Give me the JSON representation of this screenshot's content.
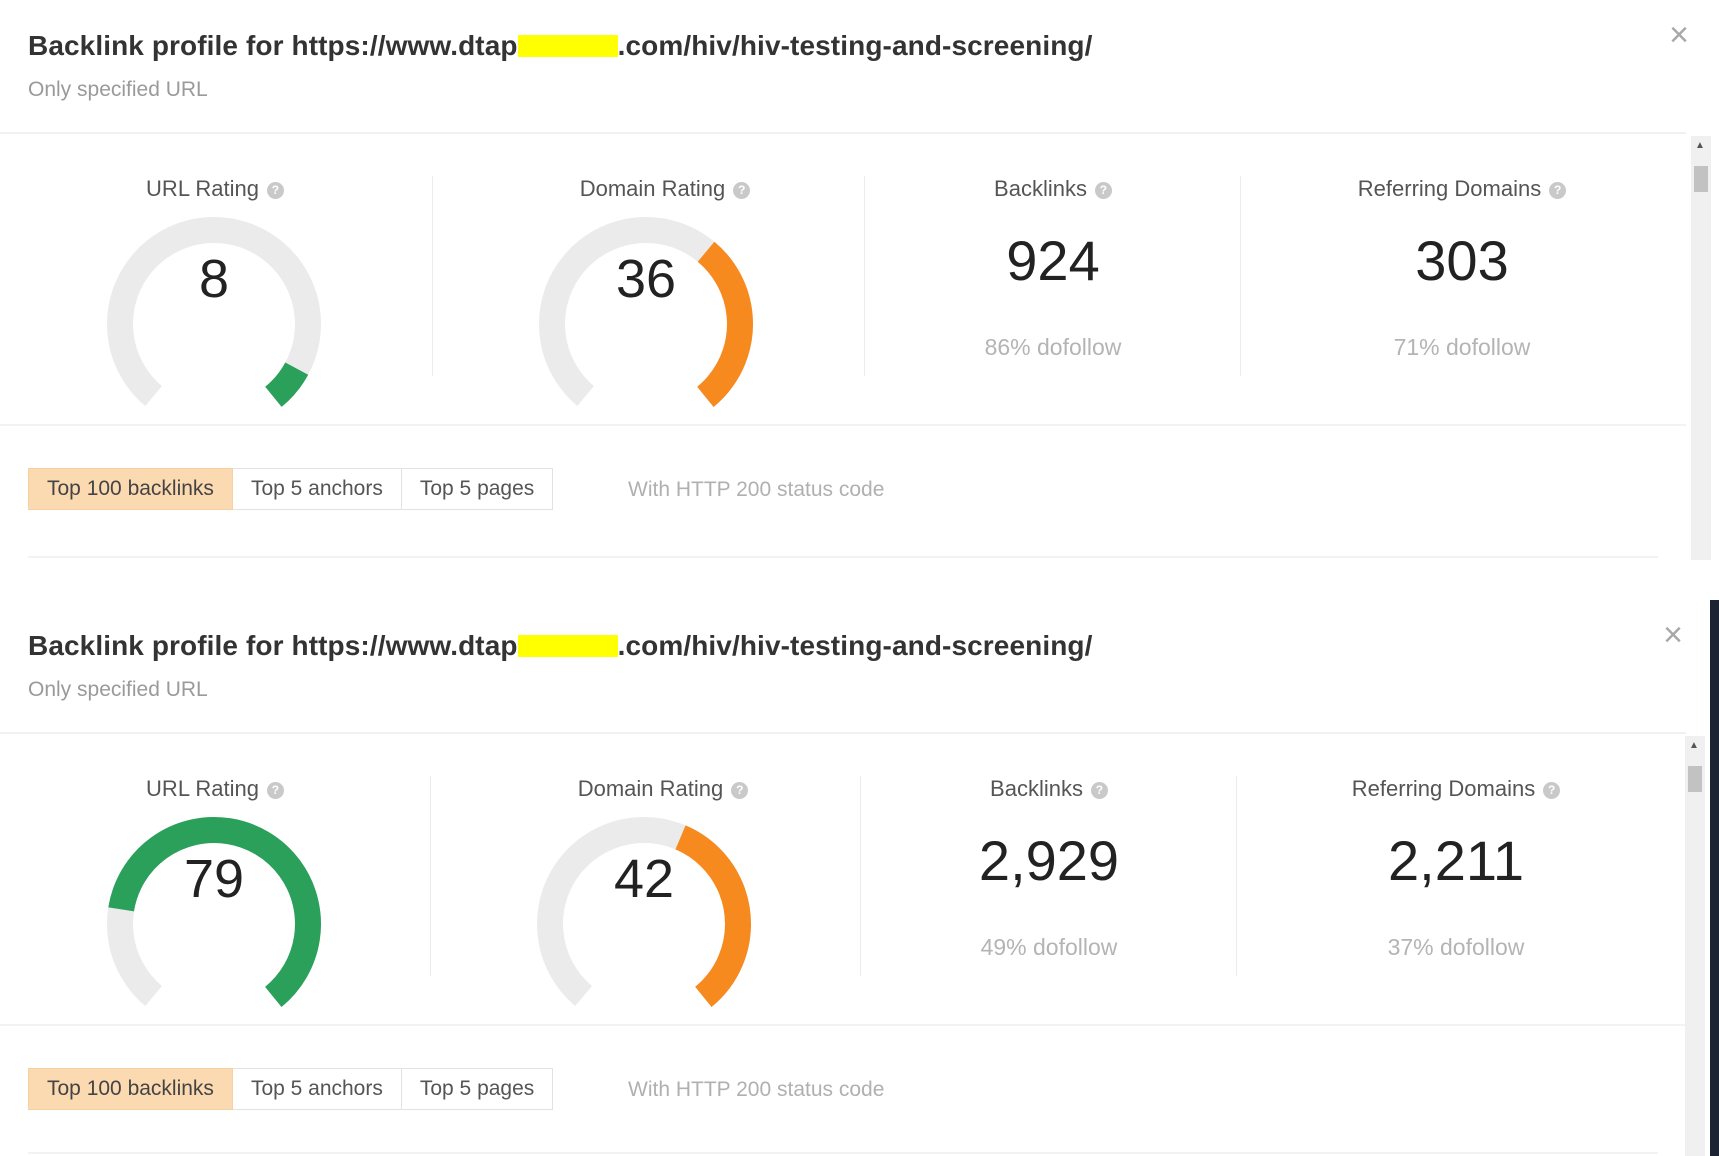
{
  "panels": [
    {
      "title_prefix": "Backlink profile for https://www.dtap",
      "title_suffix": ".com/hiv/hiv-testing-and-screening/",
      "subtitle": "Only specified URL",
      "close_glyph": "×",
      "metrics": {
        "url_rating": {
          "label": "URL Rating",
          "value": "8",
          "fraction": 0.08,
          "color": "#2aa05a"
        },
        "domain_rating": {
          "label": "Domain Rating",
          "value": "36",
          "fraction": 0.36,
          "color": "#f68a1e"
        },
        "backlinks": {
          "label": "Backlinks",
          "value": "924",
          "dofollow": "86% dofollow"
        },
        "referring_domains": {
          "label": "Referring Domains",
          "value": "303",
          "dofollow": "71% dofollow"
        }
      },
      "tabs": [
        "Top 100 backlinks",
        "Top 5 anchors",
        "Top 5 pages"
      ],
      "active_tab": 0,
      "filter_text": "With HTTP 200 status code"
    },
    {
      "title_prefix": "Backlink profile for https://www.dtap",
      "title_suffix": ".com/hiv/hiv-testing-and-screening/",
      "subtitle": "Only specified URL",
      "close_glyph": "×",
      "metrics": {
        "url_rating": {
          "label": "URL Rating",
          "value": "79",
          "fraction": 0.79,
          "color": "#2aa05a"
        },
        "domain_rating": {
          "label": "Domain Rating",
          "value": "42",
          "fraction": 0.42,
          "color": "#f68a1e"
        },
        "backlinks": {
          "label": "Backlinks",
          "value": "2,929",
          "dofollow": "49% dofollow"
        },
        "referring_domains": {
          "label": "Referring Domains",
          "value": "2,211",
          "dofollow": "37% dofollow"
        }
      },
      "tabs": [
        "Top 100 backlinks",
        "Top 5 anchors",
        "Top 5 pages"
      ],
      "active_tab": 0,
      "filter_text": "With HTTP 200 status code"
    }
  ],
  "help_glyph": "?",
  "gauge_track_color": "#ebebeb",
  "redaction_color": "#ffff00"
}
